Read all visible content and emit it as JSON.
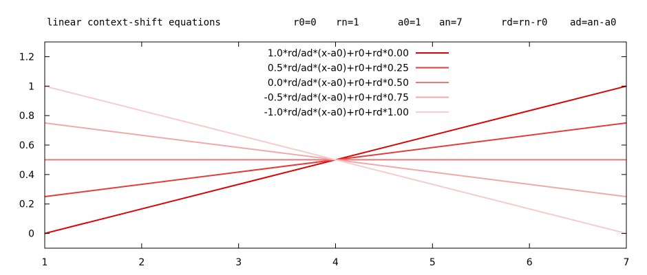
{
  "header": {
    "title": "linear context-shift equations",
    "r0": "r0=0",
    "rn": "rn=1",
    "a0": "a0=1",
    "an": "an=7",
    "rd": "rd=rn-r0",
    "ad": "ad=an-a0"
  },
  "chart_data": {
    "type": "line",
    "title": "",
    "xlabel": "",
    "ylabel": "",
    "xlim": [
      1,
      7
    ],
    "ylim": [
      -0.1,
      1.3
    ],
    "x_ticks": [
      {
        "value": 1,
        "label": "1"
      },
      {
        "value": 2,
        "label": "2"
      },
      {
        "value": 3,
        "label": "3"
      },
      {
        "value": 4,
        "label": "4"
      },
      {
        "value": 5,
        "label": "5"
      },
      {
        "value": 6,
        "label": "6"
      },
      {
        "value": 7,
        "label": "7"
      }
    ],
    "y_ticks": [
      {
        "value": 0,
        "label": "0"
      },
      {
        "value": 0.2,
        "label": "0.2"
      },
      {
        "value": 0.4,
        "label": "0.4"
      },
      {
        "value": 0.6,
        "label": "0.6"
      },
      {
        "value": 0.8,
        "label": "0.8"
      },
      {
        "value": 1,
        "label": "1"
      },
      {
        "value": 1.2,
        "label": "1.2"
      }
    ],
    "grid": false,
    "legend_position": "top-center",
    "series": [
      {
        "name": "1.0*rd/ad*(x-a0)+r0+rd*0.00",
        "x": [
          1,
          7
        ],
        "y": [
          0,
          1
        ],
        "color": "#dd0000",
        "opacity": 1.0
      },
      {
        "name": "0.5*rd/ad*(x-a0)+r0+rd*0.25",
        "x": [
          1,
          7
        ],
        "y": [
          0.25,
          0.75
        ],
        "color": "#e53a3a",
        "opacity": 1.0
      },
      {
        "name": "0.0*rd/ad*(x-a0)+r0+rd*0.50",
        "x": [
          1,
          7
        ],
        "y": [
          0.5,
          0.5
        ],
        "color": "#ec7777",
        "opacity": 1.0
      },
      {
        "name": "-0.5*rd/ad*(x-a0)+r0+rd*0.75",
        "x": [
          1,
          7
        ],
        "y": [
          0.75,
          0.25
        ],
        "color": "#f2a8a8",
        "opacity": 1.0
      },
      {
        "name": "-1.0*rd/ad*(x-a0)+r0+rd*1.00",
        "x": [
          1,
          7
        ],
        "y": [
          1,
          0
        ],
        "color": "#f6cccc",
        "opacity": 1.0
      }
    ]
  }
}
